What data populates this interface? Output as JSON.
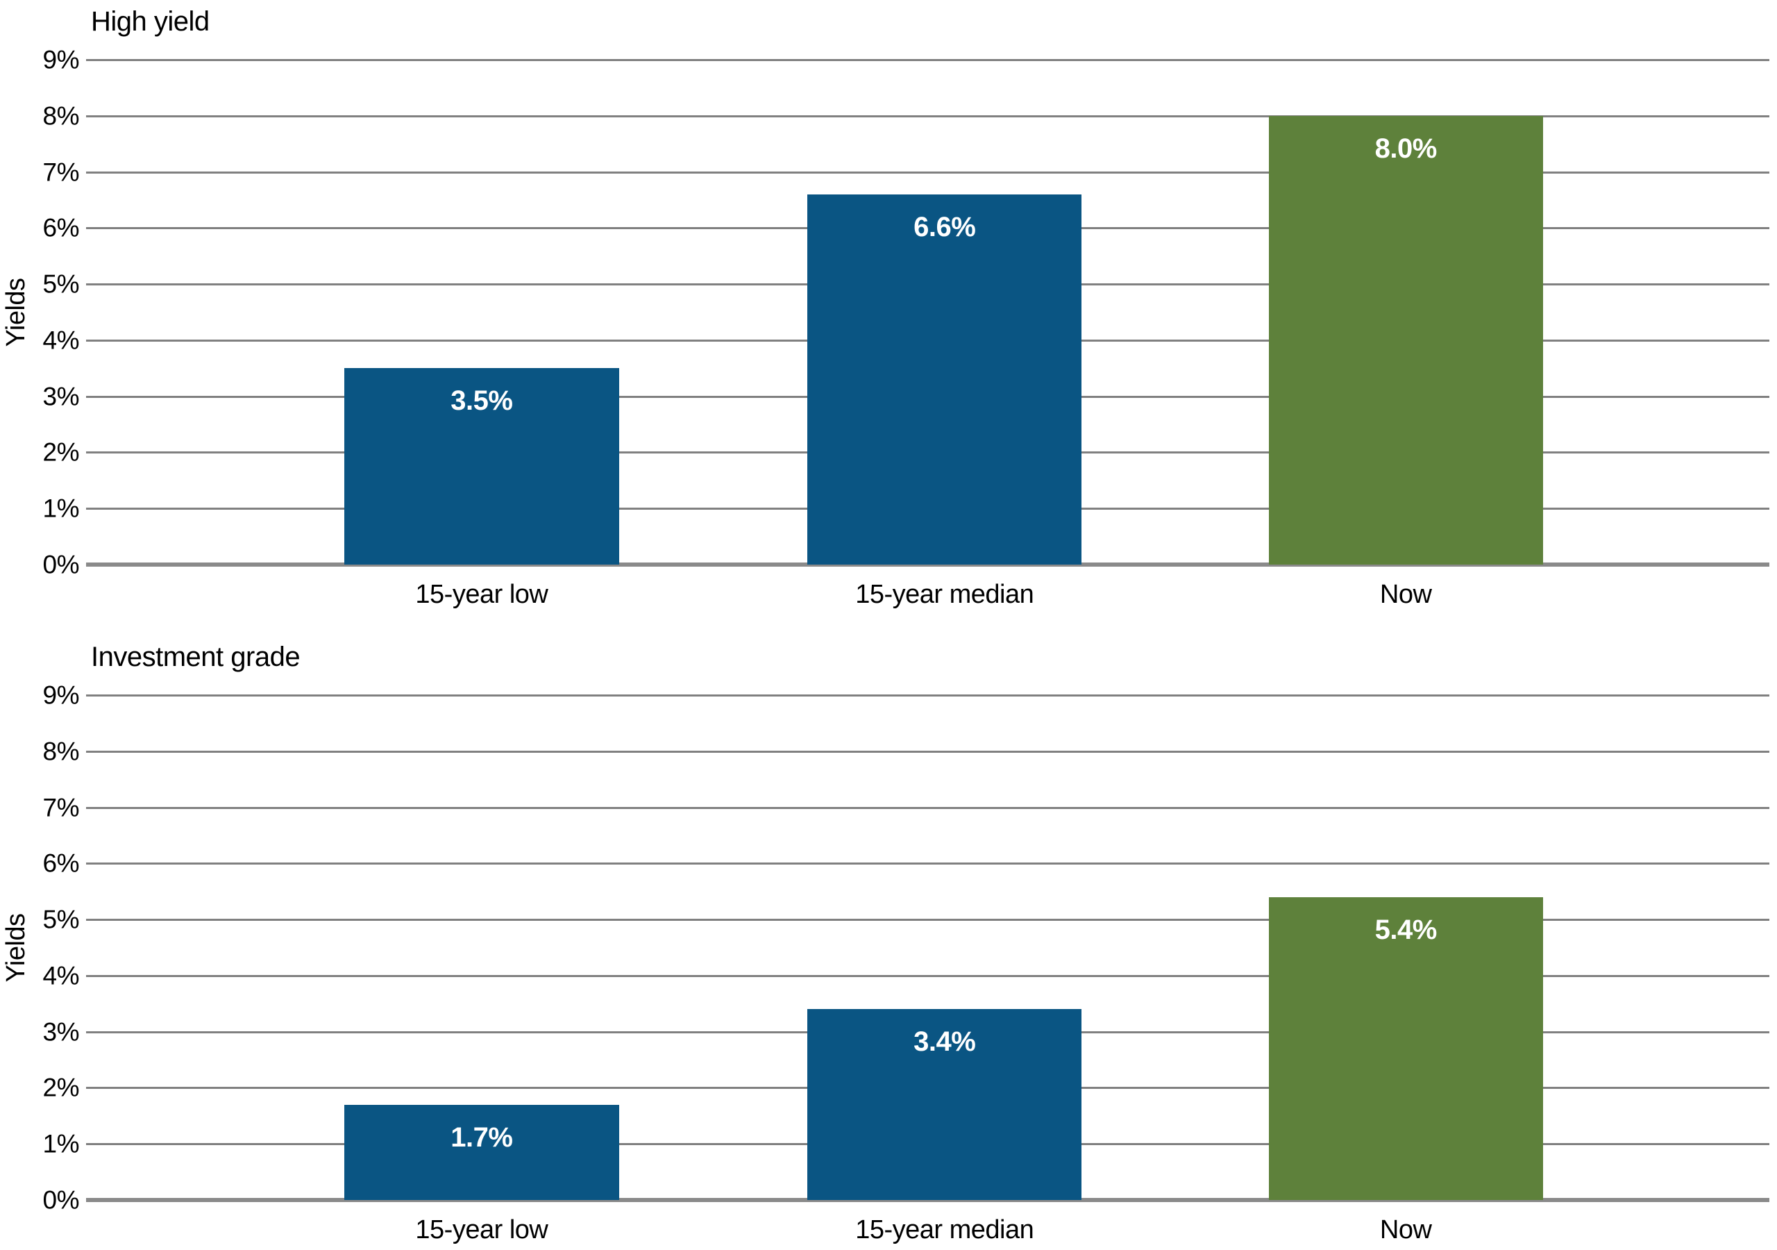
{
  "page": {
    "background": "#ffffff"
  },
  "style": {
    "text_color": "#000000",
    "gridline_color": "#808080",
    "baseline_color": "#8a8a8a",
    "value_label_color": "#ffffff",
    "bar_blue": "#0a5583",
    "bar_green": "#5e813b"
  },
  "chart_data": [
    {
      "type": "bar",
      "title": "High yield",
      "ylabel": "Yields",
      "xlabel": "",
      "categories": [
        "15-year low",
        "15-year median",
        "Now"
      ],
      "values": [
        3.5,
        6.6,
        8.0
      ],
      "value_labels": [
        "3.5%",
        "6.6%",
        "8.0%"
      ],
      "bar_colors": [
        "#0a5583",
        "#0a5583",
        "#5e813b"
      ],
      "ylim": [
        0,
        9
      ],
      "ytick_labels": [
        "9%",
        "8%",
        "7%",
        "6%",
        "5%",
        "4%",
        "3%",
        "2%",
        "1%",
        "0%"
      ],
      "grid": true,
      "legend": false
    },
    {
      "type": "bar",
      "title": "Investment grade",
      "ylabel": "Yields",
      "xlabel": "",
      "categories": [
        "15-year low",
        "15-year median",
        "Now"
      ],
      "values": [
        1.7,
        3.4,
        5.4
      ],
      "value_labels": [
        "1.7%",
        "3.4%",
        "5.4%"
      ],
      "bar_colors": [
        "#0a5583",
        "#0a5583",
        "#5e813b"
      ],
      "ylim": [
        0,
        9
      ],
      "ytick_labels": [
        "9%",
        "8%",
        "7%",
        "6%",
        "5%",
        "4%",
        "3%",
        "2%",
        "1%",
        "0%"
      ],
      "grid": true,
      "legend": false
    }
  ]
}
